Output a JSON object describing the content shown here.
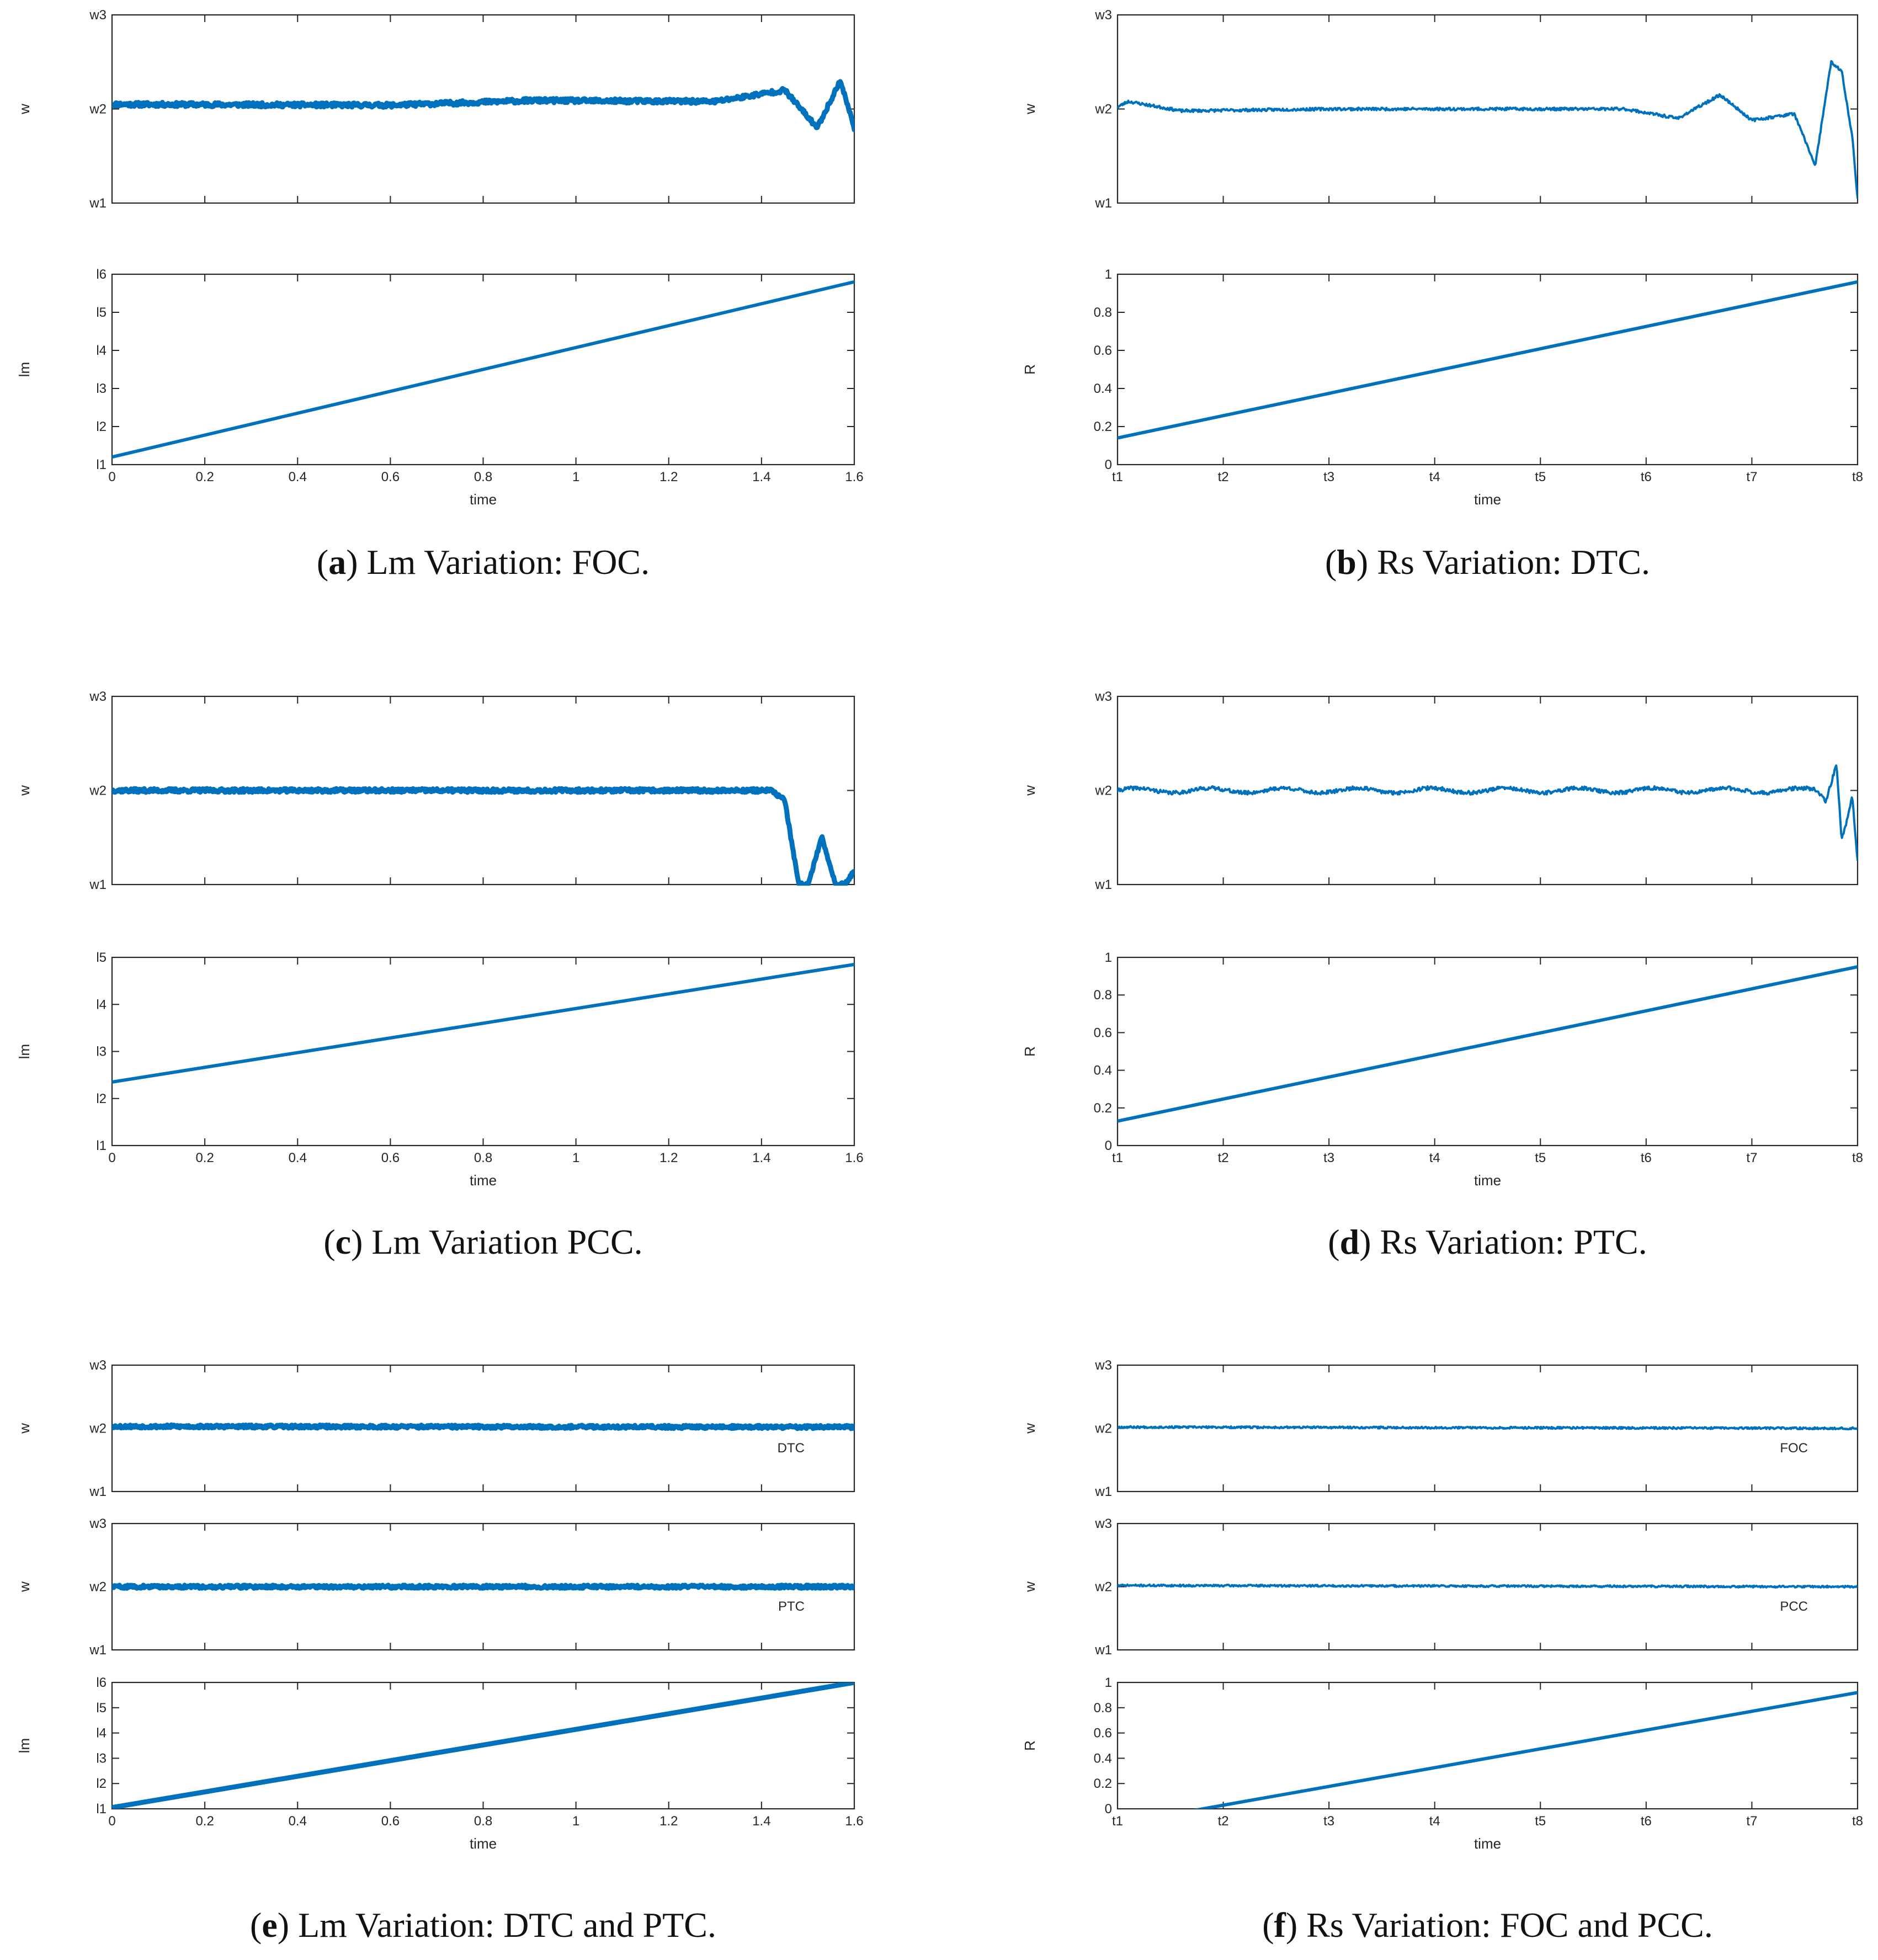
{
  "colors": {
    "series": "#0072BD",
    "axis": "#262626",
    "background": "#ffffff"
  },
  "chart_data": [
    {
      "id": "a",
      "caption": {
        "open": "(",
        "letter": "a",
        "text": ") Lm Variation: FOC."
      },
      "type": "line",
      "x": {
        "label": "time",
        "range": [
          0,
          1.6
        ],
        "ticks": [
          "0",
          "0.2",
          "0.4",
          "0.6",
          "0.8",
          "1",
          "1.2",
          "1.4",
          "1.6"
        ]
      },
      "panels": [
        {
          "kind": "speed",
          "ylabel": "w",
          "yticks": [
            "w1",
            "w2",
            "w3"
          ],
          "level": 1,
          "noise": 0.045,
          "thick": true,
          "seed": 11,
          "deviations": [
            [
              0,
              0.05
            ],
            [
              0.6,
              0.04
            ],
            [
              0.9,
              0.09
            ],
            [
              1.3,
              0.08
            ],
            [
              1.45,
              0.2
            ],
            [
              1.52,
              -0.2
            ],
            [
              1.57,
              0.3
            ],
            [
              1.6,
              -0.2
            ]
          ]
        },
        {
          "kind": "ramp",
          "ylabel": "lm",
          "yticks": [
            "l1",
            "l2",
            "l3",
            "l4",
            "l5",
            "l6"
          ],
          "start": 0.2,
          "end": 4.8
        }
      ]
    },
    {
      "id": "b",
      "caption": {
        "open": "(",
        "letter": "b",
        "text": ") Rs Variation: DTC."
      },
      "type": "line",
      "x": {
        "label": "time",
        "range": [
          0,
          7
        ],
        "ticks": [
          "t1",
          "t2",
          "t3",
          "t4",
          "t5",
          "t6",
          "t7",
          "t8"
        ]
      },
      "panels": [
        {
          "kind": "speed",
          "ylabel": "w",
          "yticks": [
            "w1",
            "w2",
            "w3"
          ],
          "level": 1,
          "noise": 0.03,
          "thick": false,
          "seed": 23,
          "deviations": [
            [
              0,
              0.02
            ],
            [
              0.1,
              0.08
            ],
            [
              0.6,
              -0.02
            ],
            [
              2.0,
              0
            ],
            [
              4.0,
              0
            ],
            [
              4.8,
              0
            ],
            [
              5.3,
              -0.1
            ],
            [
              5.7,
              0.15
            ],
            [
              6.0,
              -0.12
            ],
            [
              6.4,
              -0.05
            ],
            [
              6.6,
              -0.6
            ],
            [
              6.75,
              0.5
            ],
            [
              6.85,
              0.4
            ],
            [
              6.95,
              -0.3
            ],
            [
              7.0,
              -0.95
            ]
          ]
        },
        {
          "kind": "ramp",
          "ylabel": "R",
          "yticks": [
            "0",
            "0.2",
            "0.4",
            "0.6",
            "0.8",
            "1"
          ],
          "ylim": [
            0,
            1
          ],
          "start": 0.14,
          "end": 0.96
        }
      ]
    },
    {
      "id": "c",
      "caption": {
        "open": "(",
        "letter": "c",
        "text": ") Lm Variation PCC."
      },
      "type": "line",
      "x": {
        "label": "time",
        "range": [
          0,
          1.6
        ],
        "ticks": [
          "0",
          "0.2",
          "0.4",
          "0.6",
          "0.8",
          "1",
          "1.2",
          "1.4",
          "1.6"
        ]
      },
      "panels": [
        {
          "kind": "speed",
          "ylabel": "w",
          "yticks": [
            "w1",
            "w2",
            "w3"
          ],
          "level": 1,
          "noise": 0.04,
          "thick": true,
          "seed": 37,
          "deviations": [
            [
              0,
              0
            ],
            [
              1.42,
              0
            ],
            [
              1.45,
              -0.1
            ],
            [
              1.48,
              -1.0
            ],
            [
              1.5,
              -1.0
            ],
            [
              1.53,
              -0.5
            ],
            [
              1.56,
              -1.0
            ],
            [
              1.58,
              -1.0
            ],
            [
              1.6,
              -0.85
            ]
          ]
        },
        {
          "kind": "ramp",
          "ylabel": "lm",
          "yticks": [
            "l1",
            "l2",
            "l3",
            "l4",
            "l5"
          ],
          "start": 1.35,
          "end": 3.85
        }
      ]
    },
    {
      "id": "d",
      "caption": {
        "open": "(",
        "letter": "d",
        "text": ") Rs Variation: PTC."
      },
      "type": "line",
      "x": {
        "label": "time",
        "range": [
          0,
          7
        ],
        "ticks": [
          "t1",
          "t2",
          "t3",
          "t4",
          "t5",
          "t6",
          "t7",
          "t8"
        ]
      },
      "panels": [
        {
          "kind": "speed",
          "ylabel": "w",
          "yticks": [
            "w1",
            "w2",
            "w3"
          ],
          "level": 1,
          "noise": 0.04,
          "thick": false,
          "seed": 41,
          "wobble": 0.05,
          "deviations": [
            [
              0,
              0
            ],
            [
              6.6,
              0
            ],
            [
              6.7,
              -0.1
            ],
            [
              6.8,
              0.3
            ],
            [
              6.85,
              -0.5
            ],
            [
              6.9,
              -0.3
            ],
            [
              6.95,
              -0.05
            ],
            [
              7.0,
              -0.75
            ]
          ]
        },
        {
          "kind": "ramp",
          "ylabel": "R",
          "yticks": [
            "0",
            "0.2",
            "0.4",
            "0.6",
            "0.8",
            "1"
          ],
          "ylim": [
            0,
            1
          ],
          "start": 0.13,
          "end": 0.95
        }
      ]
    },
    {
      "id": "e",
      "caption": {
        "open": "(",
        "letter": "e",
        "text": ") Lm Variation: DTC and PTC."
      },
      "type": "line",
      "x": {
        "label": "time",
        "range": [
          0,
          1.6
        ],
        "ticks": [
          "0",
          "0.2",
          "0.4",
          "0.6",
          "0.8",
          "1",
          "1.2",
          "1.4",
          "1.6"
        ]
      },
      "panels": [
        {
          "kind": "speed",
          "ylabel": "w",
          "yticks": [
            "w1",
            "w2",
            "w3"
          ],
          "level": 1,
          "noise": 0.05,
          "thick": true,
          "seed": 53,
          "legend": "DTC",
          "deviations": [
            [
              0,
              0.03
            ],
            [
              1.6,
              0.02
            ]
          ]
        },
        {
          "kind": "speed",
          "ylabel": "w",
          "yticks": [
            "w1",
            "w2",
            "w3"
          ],
          "level": 1,
          "noise": 0.05,
          "thick": true,
          "seed": 59,
          "legend": "PTC",
          "deviations": [
            [
              0,
              0
            ],
            [
              1.6,
              0
            ]
          ]
        },
        {
          "kind": "ramp",
          "ylabel": "lm",
          "yticks": [
            "l1",
            "l2",
            "l3",
            "l4",
            "l5",
            "l6"
          ],
          "start": 0.05,
          "end": 5.0,
          "thick": true
        }
      ]
    },
    {
      "id": "f",
      "caption": {
        "open": "(",
        "letter": "f",
        "text": ") Rs Variation: FOC and PCC."
      },
      "type": "line",
      "x": {
        "label": "time",
        "range": [
          0,
          7
        ],
        "ticks": [
          "t1",
          "t2",
          "t3",
          "t4",
          "t5",
          "t6",
          "t7",
          "t8"
        ]
      },
      "panels": [
        {
          "kind": "speed",
          "ylabel": "w",
          "yticks": [
            "w1",
            "w2",
            "w3"
          ],
          "level": 1,
          "noise": 0.03,
          "thick": false,
          "seed": 67,
          "legend": "FOC",
          "deviations": [
            [
              0,
              0.02
            ],
            [
              7,
              0
            ]
          ]
        },
        {
          "kind": "speed",
          "ylabel": "w",
          "yticks": [
            "w1",
            "w2",
            "w3"
          ],
          "level": 1,
          "noise": 0.03,
          "thick": false,
          "seed": 71,
          "legend": "PCC",
          "deviations": [
            [
              0,
              0.02
            ],
            [
              7,
              0
            ]
          ]
        },
        {
          "kind": "ramp",
          "ylabel": "R",
          "yticks": [
            "0",
            "0.2",
            "0.4",
            "0.6",
            "0.8",
            "1"
          ],
          "ylim": [
            0,
            1
          ],
          "start": -0.12,
          "end": 0.92
        }
      ]
    }
  ]
}
